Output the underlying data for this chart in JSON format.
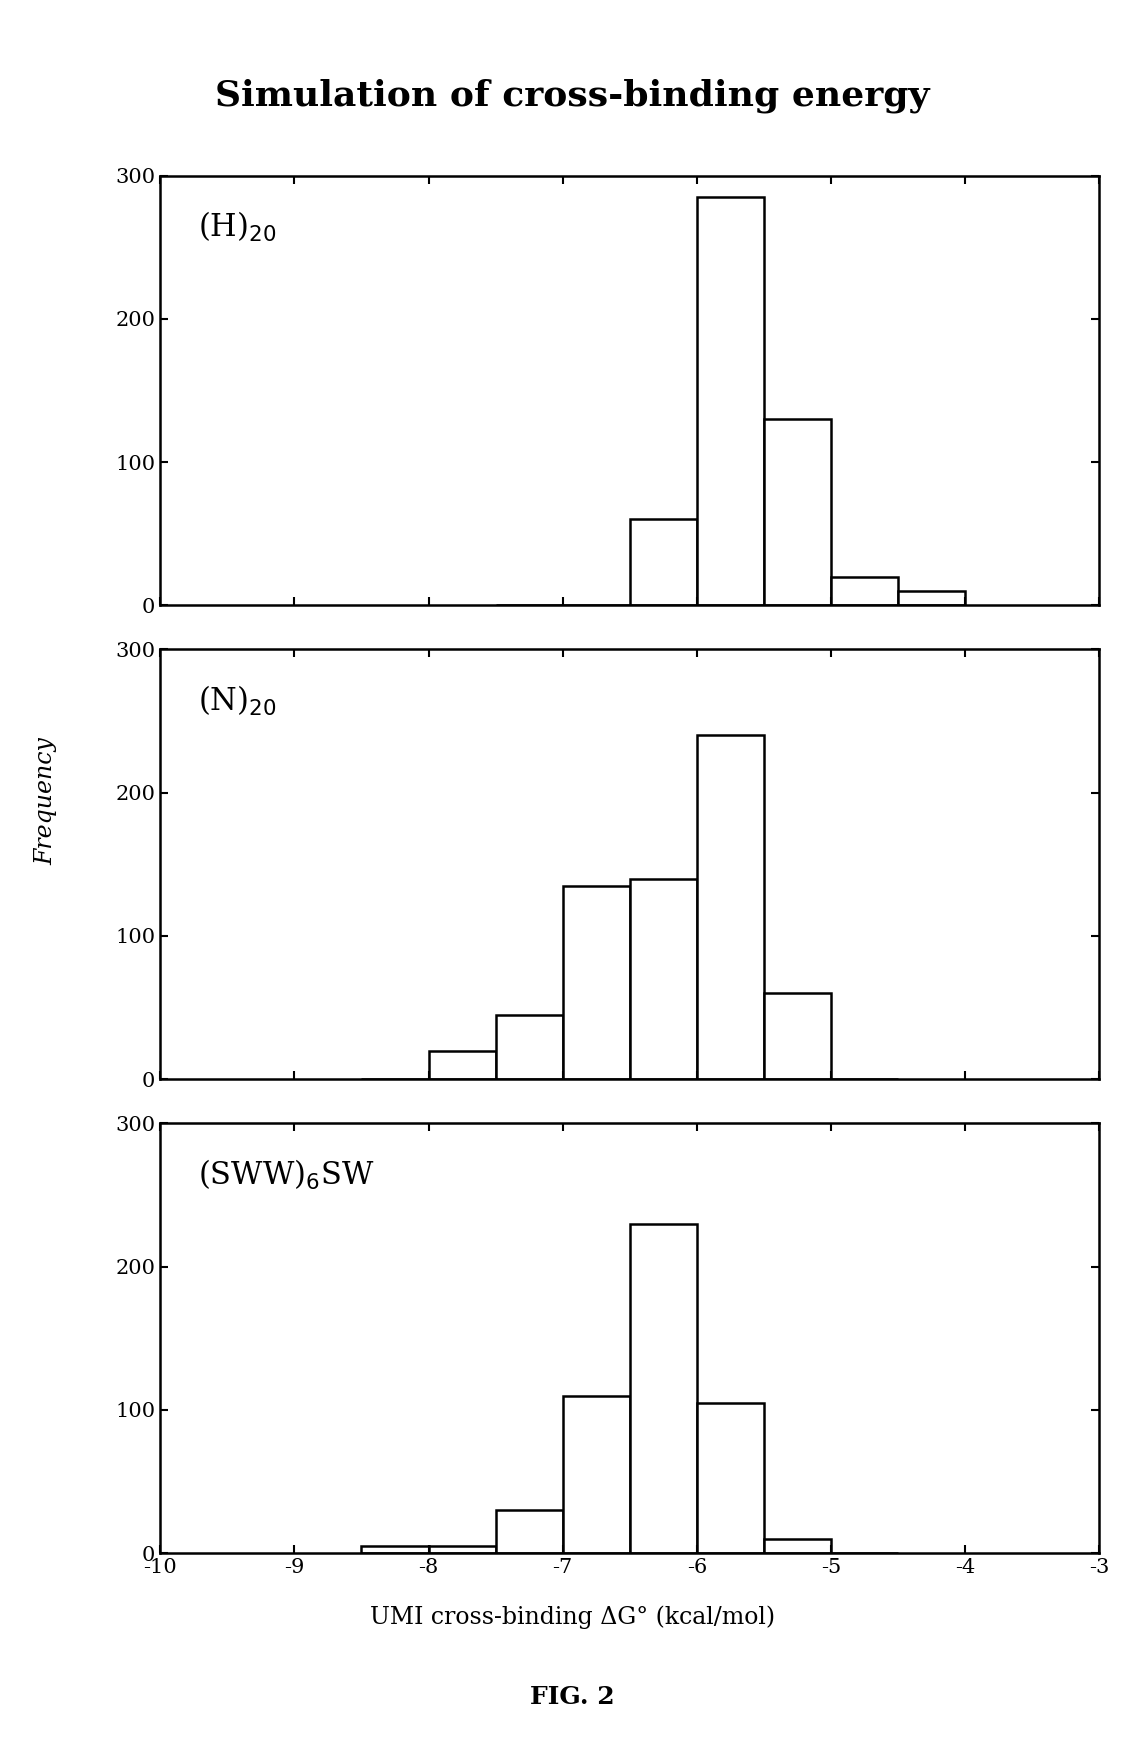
{
  "title": "Simulation of cross-binding energy",
  "xlabel": "UMI cross-binding ΔG° (kcal/mol)",
  "ylabel": "Frequency",
  "fig_caption": "FIG. 2",
  "xlim": [
    -10,
    -3
  ],
  "xticks": [
    -10,
    -9,
    -8,
    -7,
    -6,
    -5,
    -4,
    -3
  ],
  "ylim": [
    0,
    300
  ],
  "yticks": [
    0,
    100,
    200,
    300
  ],
  "subplots": [
    {
      "label": "(H)$_{20}$",
      "bins_left": [
        -7.5,
        -7.0,
        -6.5,
        -6.0,
        -5.5,
        -5.0,
        -4.5
      ],
      "counts": [
        0,
        0,
        60,
        285,
        130,
        20,
        10
      ],
      "bin_width": 0.5
    },
    {
      "label": "(N)$_{20}$",
      "bins_left": [
        -8.5,
        -8.0,
        -7.5,
        -7.0,
        -6.5,
        -6.0,
        -5.5,
        -5.0
      ],
      "counts": [
        0,
        20,
        45,
        135,
        140,
        240,
        60,
        0
      ],
      "bin_width": 0.5
    },
    {
      "label": "(SWW)$_6$SW",
      "bins_left": [
        -8.5,
        -8.0,
        -7.5,
        -7.0,
        -6.5,
        -6.0,
        -5.5,
        -5.0
      ],
      "counts": [
        5,
        5,
        30,
        110,
        230,
        105,
        10,
        0
      ],
      "bin_width": 0.5
    }
  ],
  "bar_facecolor": "white",
  "bar_edgecolor": "black",
  "background_color": "white",
  "title_fontsize": 26,
  "axis_label_fontsize": 17,
  "tick_fontsize": 15,
  "subplot_label_fontsize": 22,
  "caption_fontsize": 18,
  "bar_linewidth": 1.8,
  "spine_linewidth": 1.8
}
